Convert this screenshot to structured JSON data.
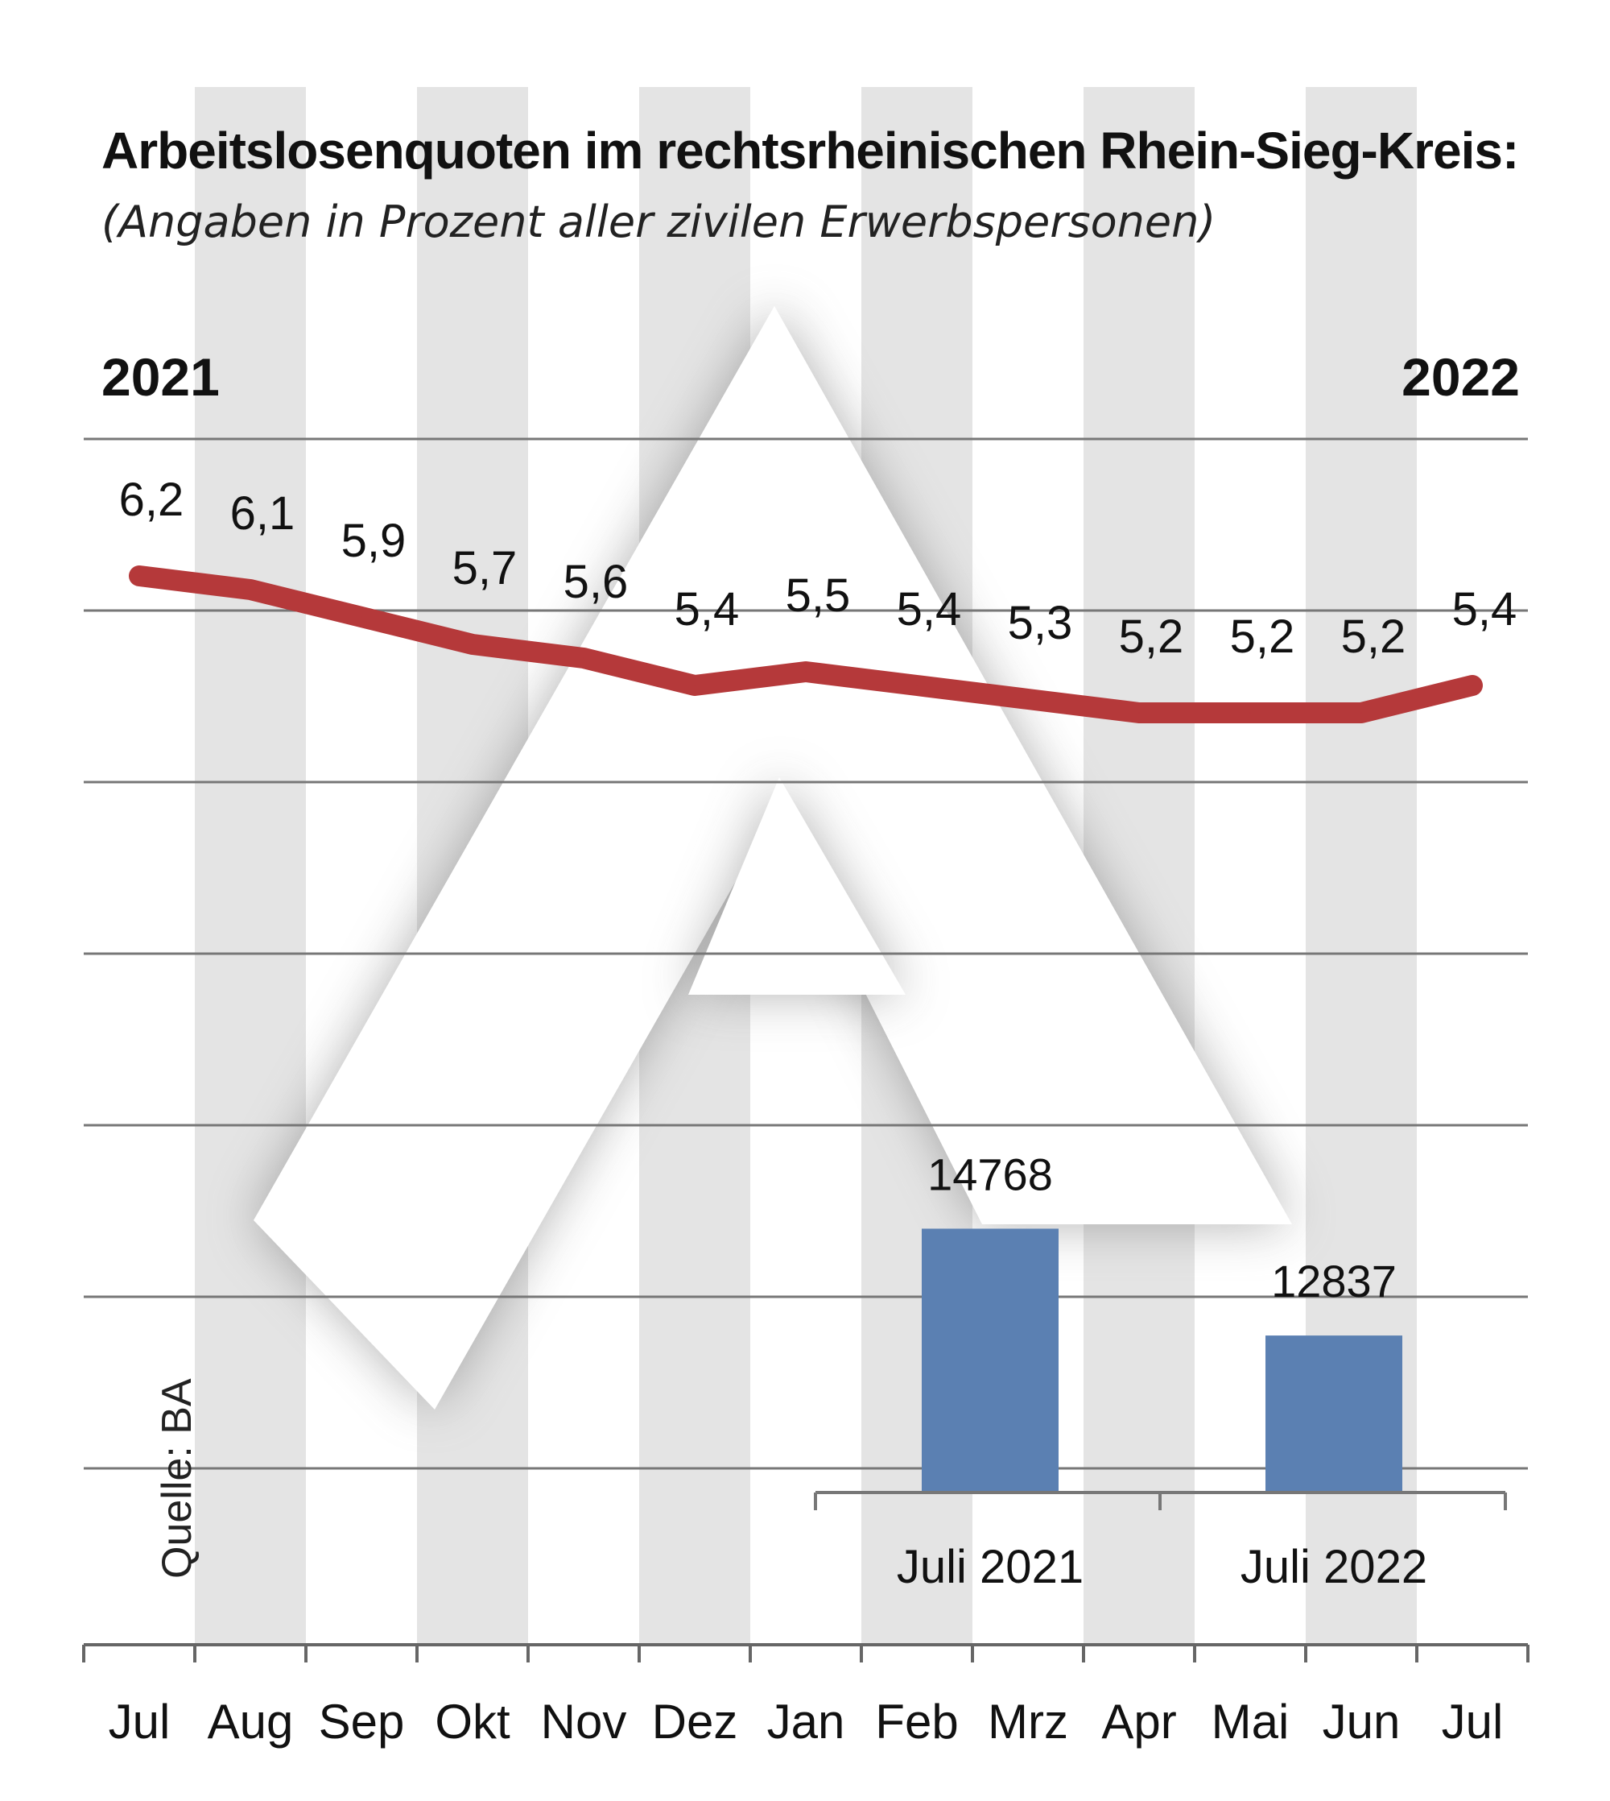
{
  "chart_data": {
    "type": "line",
    "title": "Arbeitslosenquoten im rechtsrheinischen Rhein-Sieg-Kreis:",
    "subtitle": "(Angaben in Prozent aller zivilen Erwerbspersonen)",
    "year_start_label": "2021",
    "year_end_label": "2022",
    "categories": [
      "Jul",
      "Aug",
      "Sep",
      "Okt",
      "Nov",
      "Dez",
      "Jan",
      "Feb",
      "Mrz",
      "Apr",
      "Mai",
      "Jun",
      "Jul"
    ],
    "values": [
      6.2,
      6.1,
      5.9,
      5.7,
      5.6,
      5.4,
      5.5,
      5.4,
      5.3,
      5.2,
      5.2,
      5.2,
      5.4
    ],
    "value_labels": [
      "6,2",
      "6,1",
      "5,9",
      "5,7",
      "5,6",
      "5,4",
      "5,5",
      "5,4",
      "5,3",
      "5,2",
      "5,2",
      "5,2",
      "5,4"
    ],
    "line_color": "#b5393a",
    "grid": true,
    "source": "Quelle: BA",
    "inset_bar": {
      "type": "bar",
      "categories": [
        "Juli 2021",
        "Juli 2022"
      ],
      "values": [
        14768,
        12837
      ],
      "value_labels": [
        "14768",
        "12837"
      ],
      "bar_color": "#5b80b2"
    }
  }
}
